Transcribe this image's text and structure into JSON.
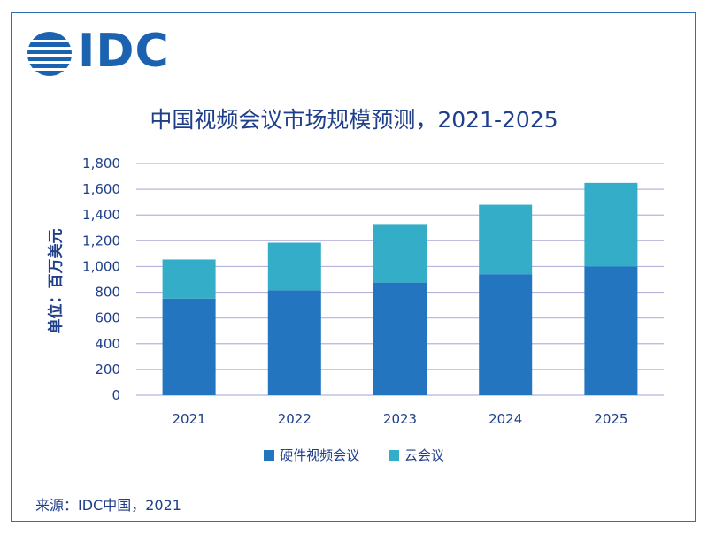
{
  "logo": {
    "text": "IDC"
  },
  "chart_data": {
    "type": "bar",
    "stacked": true,
    "title": "中国视频会议市场规模预测，2021-2025",
    "ylabel": "单位：百万美元",
    "xlabel": "",
    "categories": [
      "2021",
      "2022",
      "2023",
      "2024",
      "2025"
    ],
    "series": [
      {
        "name": "硬件视频会议",
        "color": "#2275be",
        "values": [
          750,
          815,
          875,
          940,
          1000
        ]
      },
      {
        "name": "云会议",
        "color": "#34adc8",
        "values": [
          305,
          370,
          455,
          540,
          650
        ]
      }
    ],
    "ylim": [
      0,
      1800
    ],
    "yticks": [
      "0",
      "200",
      "400",
      "600",
      "800",
      "1,000",
      "1,200",
      "1,400",
      "1,600",
      "1,800"
    ],
    "grid": true,
    "legend_position": "bottom"
  },
  "source": "来源：IDC中国，2021"
}
